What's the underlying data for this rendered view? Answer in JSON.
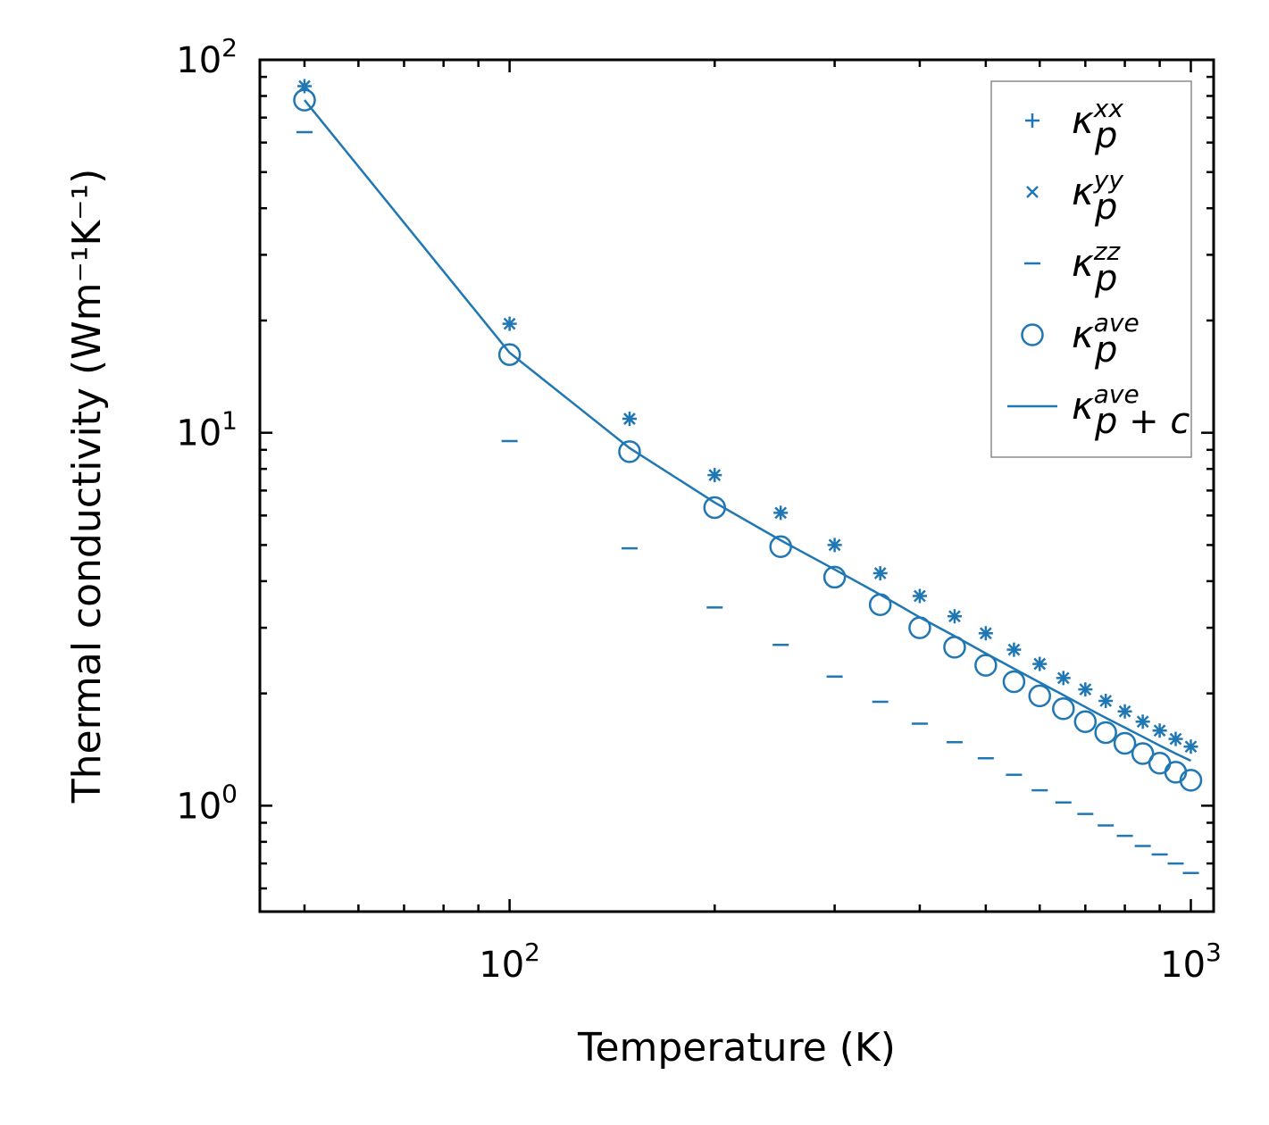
{
  "chart_data": {
    "type": "scatter",
    "xscale": "log",
    "yscale": "log",
    "xlabel": "Temperature (K)",
    "ylabel": "Thermal conductivity (Wm⁻¹K⁻¹)",
    "xlim": [
      43,
      1080
    ],
    "ylim": [
      0.52,
      100
    ],
    "x_ticks": [
      {
        "value": 100,
        "base": "10",
        "exp": "2"
      },
      {
        "value": 1000,
        "base": "10",
        "exp": "3"
      }
    ],
    "y_ticks": [
      {
        "value": 1,
        "base": "10",
        "exp": "0"
      },
      {
        "value": 10,
        "base": "10",
        "exp": "1"
      },
      {
        "value": 100,
        "base": "10",
        "exp": "2"
      }
    ],
    "color": "#1f77b4",
    "x": [
      50,
      100,
      150,
      200,
      250,
      300,
      350,
      400,
      450,
      500,
      550,
      600,
      650,
      700,
      750,
      800,
      850,
      900,
      950,
      1000
    ],
    "series": [
      {
        "name": "kxx",
        "marker": "plus",
        "legend": {
          "base": "κ",
          "sub": "p",
          "sup": "xx"
        },
        "values": [
          85,
          19.6,
          10.9,
          7.7,
          6.1,
          5.0,
          4.2,
          3.65,
          3.22,
          2.9,
          2.62,
          2.4,
          2.2,
          2.05,
          1.91,
          1.79,
          1.68,
          1.59,
          1.51,
          1.44
        ]
      },
      {
        "name": "kyy",
        "marker": "x",
        "legend": {
          "base": "κ",
          "sub": "p",
          "sup": "yy"
        },
        "values": [
          85,
          19.6,
          10.9,
          7.7,
          6.1,
          5.0,
          4.2,
          3.65,
          3.22,
          2.9,
          2.62,
          2.4,
          2.2,
          2.05,
          1.91,
          1.79,
          1.68,
          1.59,
          1.51,
          1.44
        ]
      },
      {
        "name": "kzz",
        "marker": "dash",
        "legend": {
          "base": "κ",
          "sub": "p",
          "sup": "zz"
        },
        "values": [
          64,
          9.5,
          4.9,
          3.4,
          2.7,
          2.22,
          1.9,
          1.66,
          1.48,
          1.34,
          1.21,
          1.1,
          1.02,
          0.95,
          0.885,
          0.83,
          0.78,
          0.74,
          0.7,
          0.66
        ]
      },
      {
        "name": "kave",
        "marker": "circle",
        "legend": {
          "base": "κ",
          "sub": "p",
          "sup": "ave"
        },
        "values": [
          78,
          16.2,
          8.9,
          6.3,
          4.95,
          4.1,
          3.46,
          3.0,
          2.66,
          2.38,
          2.15,
          1.97,
          1.82,
          1.68,
          1.57,
          1.47,
          1.38,
          1.3,
          1.23,
          1.17
        ]
      },
      {
        "name": "kave_pc",
        "marker": "line",
        "legend": {
          "base": "κ",
          "sub": "p + c",
          "sup": "ave"
        },
        "values": [
          78,
          16.4,
          9.1,
          6.5,
          5.15,
          4.3,
          3.68,
          3.2,
          2.85,
          2.56,
          2.33,
          2.14,
          1.98,
          1.84,
          1.72,
          1.62,
          1.53,
          1.45,
          1.38,
          1.32
        ]
      }
    ]
  }
}
